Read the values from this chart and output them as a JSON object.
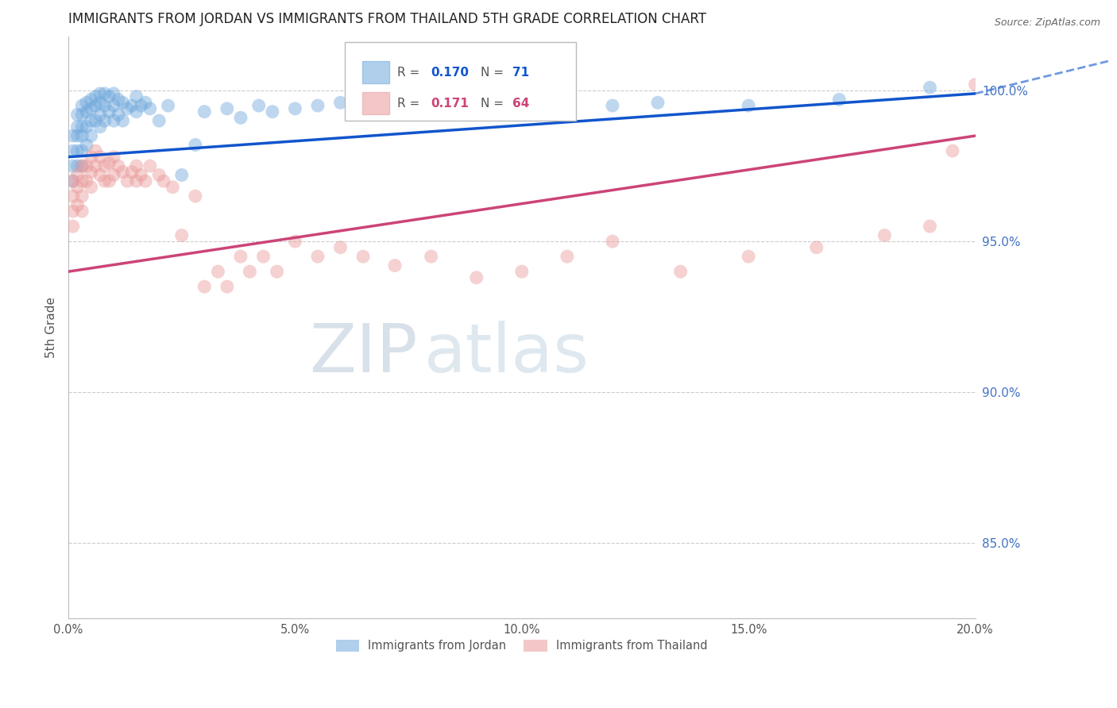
{
  "title": "IMMIGRANTS FROM JORDAN VS IMMIGRANTS FROM THAILAND 5TH GRADE CORRELATION CHART",
  "source": "Source: ZipAtlas.com",
  "xlabel_ticks": [
    "0.0%",
    "5.0%",
    "10.0%",
    "15.0%",
    "20.0%"
  ],
  "xlabel_vals": [
    0.0,
    0.05,
    0.1,
    0.15,
    0.2
  ],
  "ylabel_ticks": [
    "85.0%",
    "90.0%",
    "95.0%",
    "100.0%"
  ],
  "ylabel_vals": [
    85.0,
    90.0,
    95.0,
    100.0
  ],
  "ylabel_label": "5th Grade",
  "xlim": [
    0.0,
    0.2
  ],
  "ylim": [
    82.5,
    101.8
  ],
  "jordan_R": 0.17,
  "jordan_N": 71,
  "thailand_R": 0.171,
  "thailand_N": 64,
  "jordan_color": "#6fa8dc",
  "thailand_color": "#ea9999",
  "jordan_line_color": "#1155cc",
  "thailand_line_color": "#cc4477",
  "watermark_zip": "ZIP",
  "watermark_atlas": "atlas",
  "jordan_x": [
    0.001,
    0.001,
    0.001,
    0.001,
    0.002,
    0.002,
    0.002,
    0.002,
    0.002,
    0.003,
    0.003,
    0.003,
    0.003,
    0.003,
    0.003,
    0.004,
    0.004,
    0.004,
    0.004,
    0.005,
    0.005,
    0.005,
    0.005,
    0.006,
    0.006,
    0.006,
    0.007,
    0.007,
    0.007,
    0.007,
    0.008,
    0.008,
    0.008,
    0.009,
    0.009,
    0.01,
    0.01,
    0.01,
    0.011,
    0.011,
    0.012,
    0.012,
    0.013,
    0.014,
    0.015,
    0.015,
    0.016,
    0.017,
    0.018,
    0.02,
    0.022,
    0.025,
    0.028,
    0.03,
    0.035,
    0.038,
    0.042,
    0.045,
    0.05,
    0.055,
    0.06,
    0.07,
    0.08,
    0.09,
    0.1,
    0.11,
    0.12,
    0.13,
    0.15,
    0.17,
    0.19
  ],
  "jordan_y": [
    98.5,
    98.0,
    97.5,
    97.0,
    99.2,
    98.8,
    98.5,
    98.0,
    97.5,
    99.5,
    99.2,
    98.8,
    98.5,
    98.0,
    97.5,
    99.6,
    99.3,
    98.8,
    98.2,
    99.7,
    99.4,
    99.0,
    98.5,
    99.8,
    99.5,
    99.0,
    99.9,
    99.6,
    99.2,
    98.8,
    99.9,
    99.5,
    99.0,
    99.8,
    99.3,
    99.9,
    99.5,
    99.0,
    99.7,
    99.2,
    99.6,
    99.0,
    99.4,
    99.5,
    99.8,
    99.3,
    99.5,
    99.6,
    99.4,
    99.0,
    99.5,
    97.2,
    98.2,
    99.3,
    99.4,
    99.1,
    99.5,
    99.3,
    99.4,
    99.5,
    99.6,
    99.3,
    99.5,
    99.4,
    99.5,
    99.7,
    99.5,
    99.6,
    99.5,
    99.7,
    100.1
  ],
  "thailand_x": [
    0.001,
    0.001,
    0.001,
    0.001,
    0.002,
    0.002,
    0.002,
    0.003,
    0.003,
    0.003,
    0.003,
    0.004,
    0.004,
    0.005,
    0.005,
    0.005,
    0.006,
    0.006,
    0.007,
    0.007,
    0.008,
    0.008,
    0.009,
    0.009,
    0.01,
    0.01,
    0.011,
    0.012,
    0.013,
    0.014,
    0.015,
    0.015,
    0.016,
    0.017,
    0.018,
    0.02,
    0.021,
    0.023,
    0.025,
    0.028,
    0.03,
    0.033,
    0.035,
    0.038,
    0.04,
    0.043,
    0.046,
    0.05,
    0.055,
    0.06,
    0.065,
    0.072,
    0.08,
    0.09,
    0.1,
    0.11,
    0.12,
    0.135,
    0.15,
    0.165,
    0.18,
    0.19,
    0.195,
    0.2
  ],
  "thailand_y": [
    97.0,
    96.5,
    96.0,
    95.5,
    97.2,
    96.8,
    96.2,
    97.5,
    97.0,
    96.5,
    96.0,
    97.5,
    97.0,
    97.8,
    97.3,
    96.8,
    98.0,
    97.5,
    97.8,
    97.2,
    97.5,
    97.0,
    97.6,
    97.0,
    97.8,
    97.2,
    97.5,
    97.3,
    97.0,
    97.3,
    97.5,
    97.0,
    97.2,
    97.0,
    97.5,
    97.2,
    97.0,
    96.8,
    95.2,
    96.5,
    93.5,
    94.0,
    93.5,
    94.5,
    94.0,
    94.5,
    94.0,
    95.0,
    94.5,
    94.8,
    94.5,
    94.2,
    94.5,
    93.8,
    94.0,
    94.5,
    95.0,
    94.0,
    94.5,
    94.8,
    95.2,
    95.5,
    98.0,
    100.2
  ],
  "jordan_trend": [
    97.8,
    99.9
  ],
  "thailand_trend": [
    94.0,
    98.5
  ],
  "jordan_dashed_trend": [
    99.9,
    101.0
  ]
}
